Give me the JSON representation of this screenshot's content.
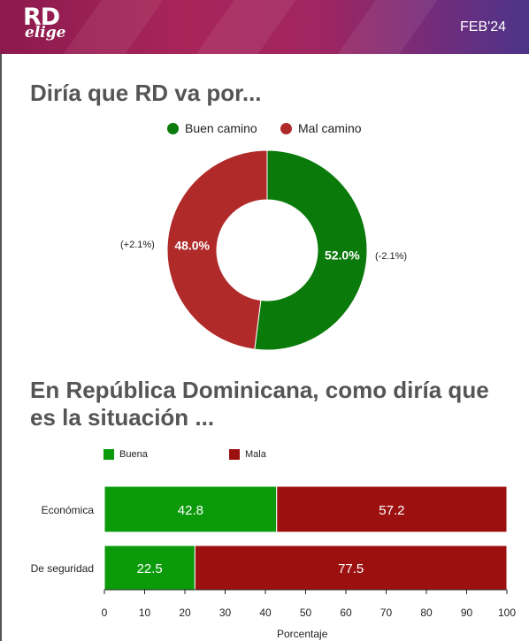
{
  "header": {
    "logo_top": "RD",
    "logo_bottom": "elige",
    "date": "FEB'24"
  },
  "colors": {
    "good_green": "#0a7a0a",
    "bad_red": "#b02a2a",
    "bar_green": "#0a9a0a",
    "bar_red": "#9c1010"
  },
  "donut": {
    "title": "Diría que RD va por...",
    "legend": [
      "Buen camino",
      "Mal camino"
    ],
    "change_good": "(-2.1%)",
    "change_bad": "(+2.1%)"
  },
  "bars": {
    "title_line1": "En República Dominicana, como diría que",
    "title_line2": "es la situación ...",
    "legend": [
      "Buena",
      "Mala"
    ],
    "xlabel": "Porcentaje"
  },
  "chart_data": [
    {
      "type": "pie",
      "title": "Diría que RD va por...",
      "categories": [
        "Buen camino",
        "Mal camino"
      ],
      "values": [
        52.0,
        48.0
      ],
      "labels": [
        "52.0%",
        "48.0%"
      ],
      "annotations": [
        "(-2.1%)",
        "(+2.1%)"
      ],
      "legend_position": "top"
    },
    {
      "type": "bar",
      "orientation": "horizontal",
      "stacked": true,
      "title": "En República Dominicana, como diría que es la situación ...",
      "categories": [
        "Económica",
        "De seguridad"
      ],
      "series": [
        {
          "name": "Buena",
          "values": [
            42.8,
            22.5
          ]
        },
        {
          "name": "Mala",
          "values": [
            57.2,
            77.5
          ]
        }
      ],
      "xlabel": "Porcentaje",
      "xlim": [
        0,
        100
      ],
      "xticks": [
        "0",
        "10",
        "20",
        "30",
        "40",
        "50",
        "60",
        "70",
        "80",
        "90",
        "100"
      ],
      "legend_position": "top"
    }
  ]
}
